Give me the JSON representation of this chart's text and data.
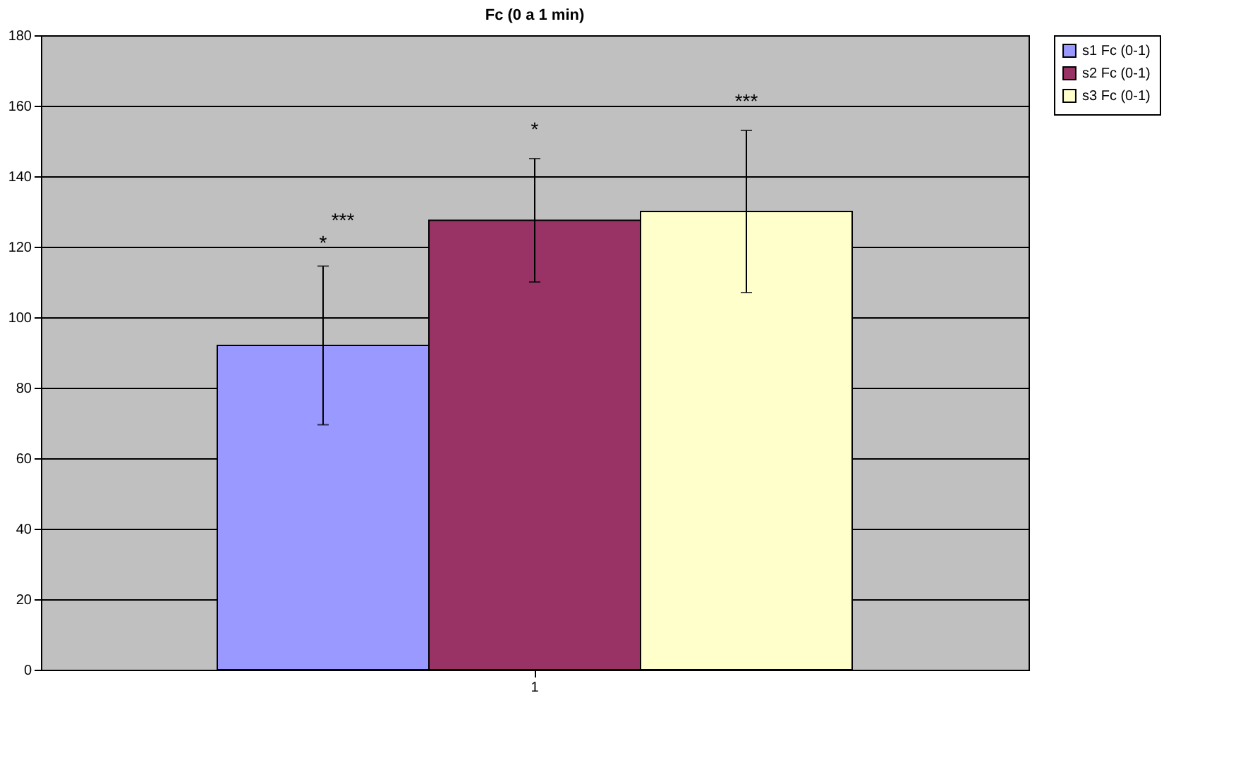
{
  "chart_data": {
    "type": "bar",
    "title": "Fc (0 a 1 min)",
    "categories": [
      "1"
    ],
    "series": [
      {
        "name": "s1 Fc (0-1)",
        "color": "#9999ff",
        "values": [
          92
        ],
        "errors": [
          22.5
        ]
      },
      {
        "name": "s2 Fc (0-1)",
        "color": "#993366",
        "values": [
          127.5
        ],
        "errors": [
          17.5
        ]
      },
      {
        "name": "s3 Fc (0-1)",
        "color": "#ffffcc",
        "values": [
          130
        ],
        "errors": [
          23
        ]
      }
    ],
    "annotations": [
      "*",
      "***",
      "*",
      "***"
    ],
    "ylim": [
      0,
      180
    ],
    "yticks": [
      0,
      20,
      40,
      60,
      80,
      100,
      120,
      140,
      160,
      180
    ],
    "grid": "y",
    "legend": "right"
  }
}
